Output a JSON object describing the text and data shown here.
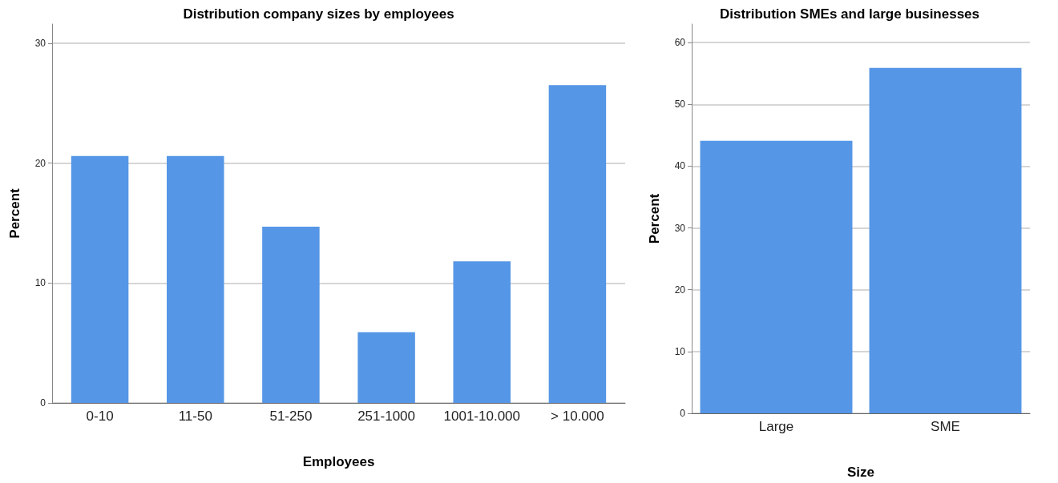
{
  "chart_data": [
    {
      "type": "bar",
      "title": "Distribution company sizes by employees",
      "xlabel": "Employees",
      "ylabel": "Percent",
      "categories": [
        "0-10",
        "11-50",
        "51-250",
        "251-1000",
        "1001-10.000",
        "> 10.000"
      ],
      "values": [
        20.6,
        20.6,
        14.7,
        5.9,
        11.8,
        26.5
      ],
      "color": "#5596e6",
      "ylim": [
        0,
        31.6
      ],
      "yticks": [
        0,
        10,
        20,
        30
      ],
      "grid": "y"
    },
    {
      "type": "bar",
      "title": "Distribution SMEs and large businesses",
      "xlabel": "Size",
      "ylabel": "Percent",
      "categories": [
        "Large",
        "SME"
      ],
      "values": [
        44.1,
        55.9
      ],
      "color": "#5596e6",
      "ylim": [
        0,
        63
      ],
      "yticks": [
        0,
        10,
        20,
        30,
        40,
        50,
        60
      ],
      "grid": "y"
    }
  ]
}
